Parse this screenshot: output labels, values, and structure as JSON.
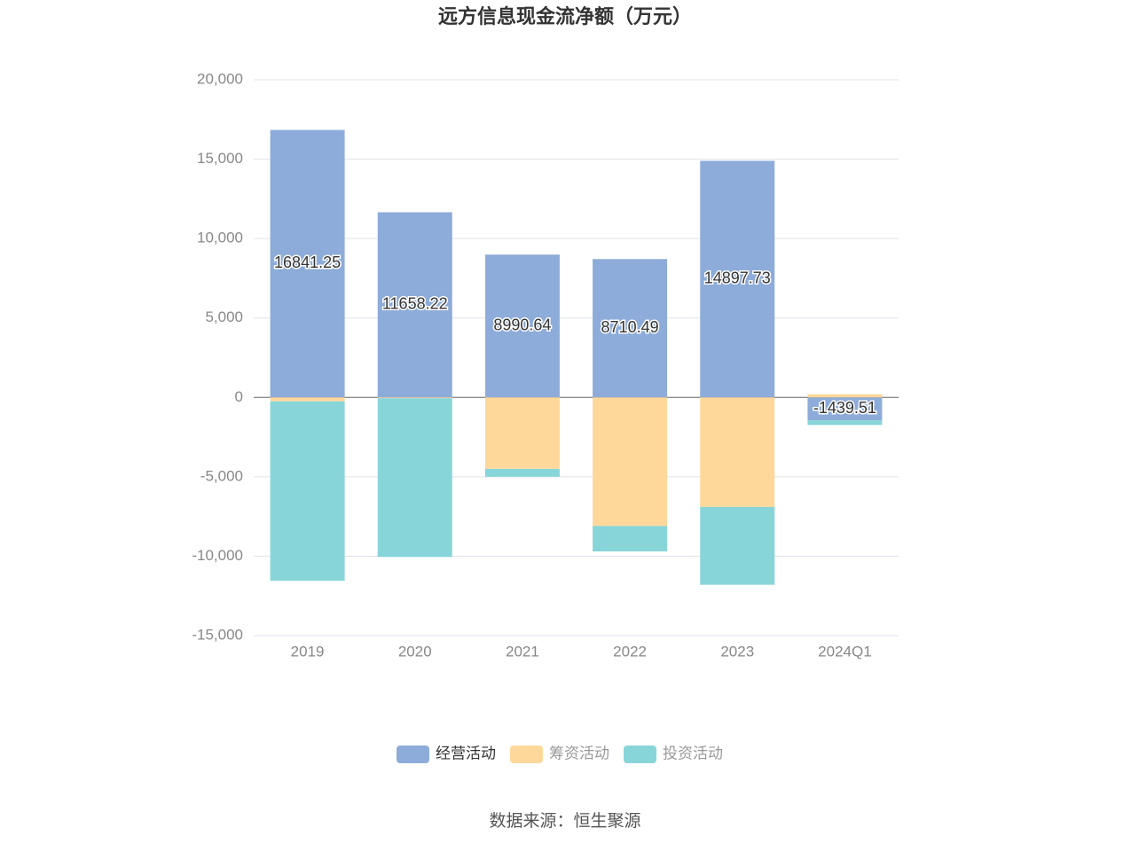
{
  "chart_data": {
    "type": "bar",
    "stacked": true,
    "title": "远方信息现金流净额（万元）",
    "source": "数据来源：恒生聚源",
    "categories": [
      "2019",
      "2020",
      "2021",
      "2022",
      "2023",
      "2024Q1"
    ],
    "series": [
      {
        "name": "经营活动",
        "color": "#8eacd9",
        "values": [
          16841.25,
          11658.22,
          8990.64,
          8710.49,
          14897.73,
          -1439.51
        ],
        "show_labels": true
      },
      {
        "name": "筹资活动",
        "color": "#fed89b",
        "values": [
          -250,
          -50,
          -4500,
          -8100,
          -6900,
          200
        ]
      },
      {
        "name": "投资活动",
        "color": "#88d5d9",
        "values": [
          -11300,
          -10000,
          -500,
          -1600,
          -4900,
          -300
        ]
      }
    ],
    "ylim": [
      -15000,
      20000
    ],
    "yticks": [
      {
        "value": -15000,
        "label": "-15,000"
      },
      {
        "value": -10000,
        "label": "-10,000"
      },
      {
        "value": -5000,
        "label": "-5,000"
      },
      0,
      {
        "value": 5000,
        "label": "5,000"
      },
      {
        "value": 10000,
        "label": "10,000"
      },
      {
        "value": 15000,
        "label": "15,000"
      },
      {
        "value": 20000,
        "label": "20,000"
      }
    ],
    "grid": true,
    "legend": "bottom"
  }
}
